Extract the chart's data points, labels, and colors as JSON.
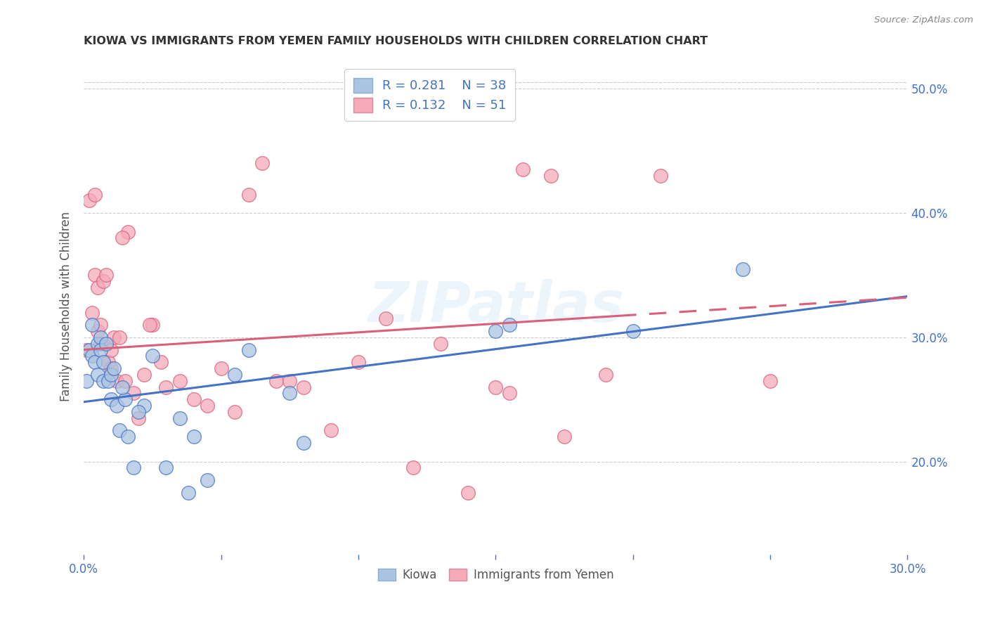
{
  "title": "KIOWA VS IMMIGRANTS FROM YEMEN FAMILY HOUSEHOLDS WITH CHILDREN CORRELATION CHART",
  "source": "Source: ZipAtlas.com",
  "ylabel": "Family Households with Children",
  "legend_labels": [
    "Kiowa",
    "Immigrants from Yemen"
  ],
  "r_kiowa": 0.281,
  "n_kiowa": 38,
  "r_yemen": 0.132,
  "n_yemen": 51,
  "xlim": [
    0.0,
    0.3
  ],
  "ylim": [
    0.125,
    0.525
  ],
  "yticks": [
    0.2,
    0.3,
    0.4,
    0.5
  ],
  "ytick_labels": [
    "20.0%",
    "30.0%",
    "40.0%",
    "50.0%"
  ],
  "xticks": [
    0.0,
    0.05,
    0.1,
    0.15,
    0.2,
    0.25,
    0.3
  ],
  "xtick_labels": [
    "0.0%",
    "",
    "",
    "",
    "",
    "",
    "30.0%"
  ],
  "color_kiowa": "#aac4e2",
  "color_yemen": "#f5aab8",
  "line_color_kiowa": "#4472c4",
  "line_color_yemen": "#d9607a",
  "kiowa_x": [
    0.001,
    0.002,
    0.003,
    0.003,
    0.004,
    0.005,
    0.005,
    0.006,
    0.006,
    0.007,
    0.007,
    0.008,
    0.009,
    0.01,
    0.01,
    0.011,
    0.012,
    0.013,
    0.015,
    0.016,
    0.018,
    0.022,
    0.025,
    0.03,
    0.035,
    0.038,
    0.04,
    0.045,
    0.055,
    0.06,
    0.075,
    0.08,
    0.15,
    0.155,
    0.2,
    0.24,
    0.014,
    0.02
  ],
  "kiowa_y": [
    0.265,
    0.29,
    0.285,
    0.31,
    0.28,
    0.295,
    0.27,
    0.3,
    0.29,
    0.265,
    0.28,
    0.295,
    0.265,
    0.27,
    0.25,
    0.275,
    0.245,
    0.225,
    0.25,
    0.22,
    0.195,
    0.245,
    0.285,
    0.195,
    0.235,
    0.175,
    0.22,
    0.185,
    0.27,
    0.29,
    0.255,
    0.215,
    0.305,
    0.31,
    0.305,
    0.355,
    0.26,
    0.24
  ],
  "yemen_x": [
    0.001,
    0.002,
    0.003,
    0.004,
    0.004,
    0.005,
    0.005,
    0.006,
    0.006,
    0.007,
    0.008,
    0.009,
    0.01,
    0.01,
    0.011,
    0.012,
    0.013,
    0.015,
    0.016,
    0.018,
    0.02,
    0.022,
    0.025,
    0.028,
    0.03,
    0.035,
    0.04,
    0.045,
    0.05,
    0.06,
    0.065,
    0.07,
    0.08,
    0.09,
    0.1,
    0.11,
    0.12,
    0.14,
    0.15,
    0.16,
    0.17,
    0.19,
    0.21,
    0.25,
    0.014,
    0.024,
    0.055,
    0.075,
    0.13,
    0.155,
    0.175
  ],
  "yemen_y": [
    0.29,
    0.41,
    0.32,
    0.415,
    0.35,
    0.34,
    0.305,
    0.295,
    0.31,
    0.345,
    0.35,
    0.28,
    0.29,
    0.275,
    0.3,
    0.265,
    0.3,
    0.265,
    0.385,
    0.255,
    0.235,
    0.27,
    0.31,
    0.28,
    0.26,
    0.265,
    0.25,
    0.245,
    0.275,
    0.415,
    0.44,
    0.265,
    0.26,
    0.225,
    0.28,
    0.315,
    0.195,
    0.175,
    0.26,
    0.435,
    0.43,
    0.27,
    0.43,
    0.265,
    0.38,
    0.31,
    0.24,
    0.265,
    0.295,
    0.255,
    0.22
  ],
  "line_kiowa_x0": 0.0,
  "line_kiowa_y0": 0.248,
  "line_kiowa_x1": 0.3,
  "line_kiowa_y1": 0.333,
  "line_yemen_x0": 0.0,
  "line_yemen_y0": 0.29,
  "line_yemen_x1": 0.3,
  "line_yemen_y1": 0.332,
  "line_yemen_solid_end": 0.195
}
